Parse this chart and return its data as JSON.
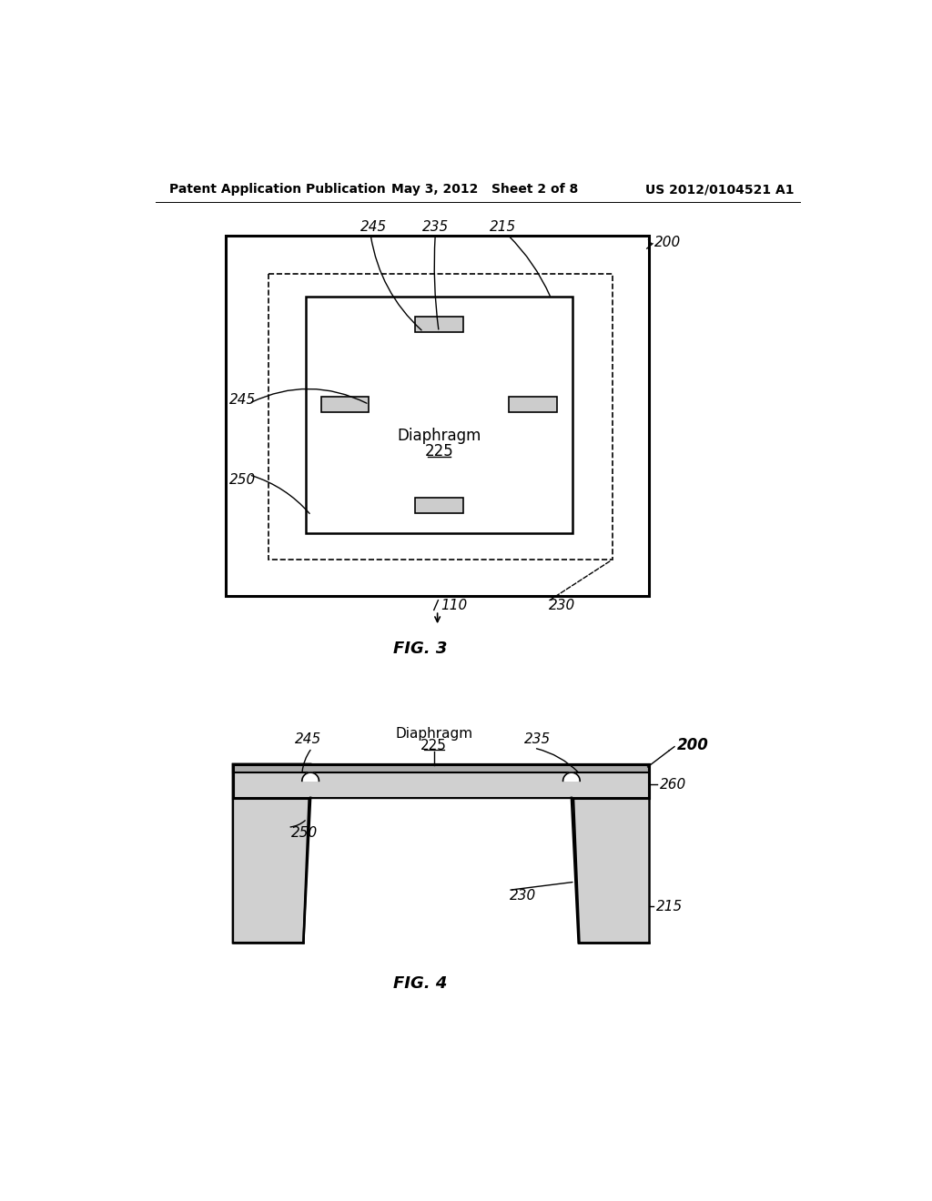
{
  "bg_color": "#ffffff",
  "header_left": "Patent Application Publication",
  "header_mid": "May 3, 2012   Sheet 2 of 8",
  "header_right": "US 2012/0104521 A1",
  "fig3_label": "FIG. 3",
  "fig4_label": "FIG. 4",
  "ref_200_fig3": "200",
  "ref_215_fig3": "215",
  "ref_235_fig3": "235",
  "ref_245_top": "245",
  "ref_245_left": "245",
  "ref_250_fig3": "250",
  "ref_230_fig3": "230",
  "ref_110_fig3": "110",
  "ref_225_text": "Diaphragm",
  "ref_225_num": "225",
  "ref_245_fig4": "245",
  "ref_235_fig4": "235",
  "ref_250_fig4": "250",
  "ref_230_fig4": "230",
  "ref_215_fig4": "215",
  "ref_260_fig4": "260",
  "ref_200_fig4": "200",
  "ref_diaphragm_fig4": "Diaphragm",
  "ref_225_fig4": "225"
}
